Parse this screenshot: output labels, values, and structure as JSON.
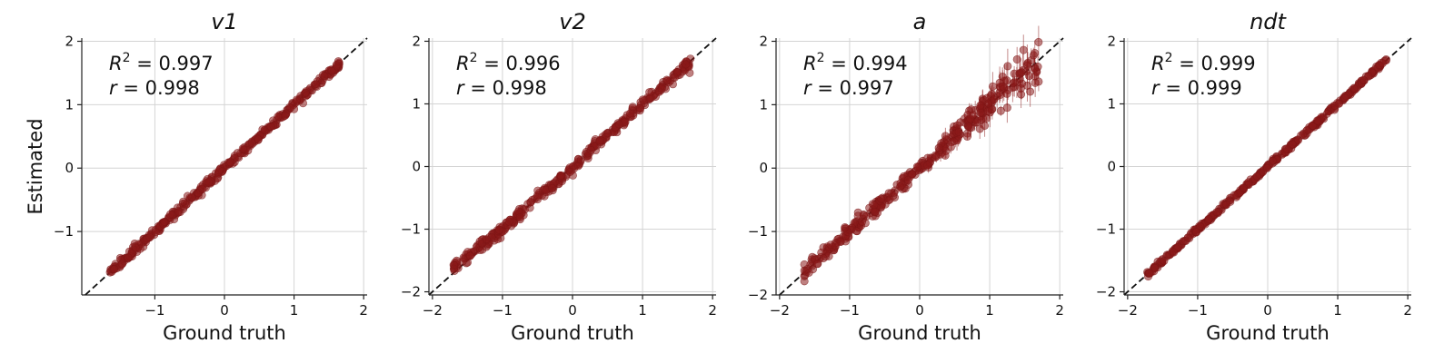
{
  "chart_data": [
    {
      "type": "scatter",
      "title": "v1",
      "xlabel": "Ground truth",
      "ylabel": "Estimated",
      "xlim": [
        -2.05,
        2.05
      ],
      "ylim": [
        -2.0,
        2.05
      ],
      "xticks": [
        -1,
        0,
        1,
        2
      ],
      "yticks": [
        -1,
        0,
        1,
        2
      ],
      "grid": true,
      "reference_line": "identity (dashed)",
      "stats": {
        "r2": "0.997",
        "r": "0.998"
      },
      "series": [
        {
          "x": [
            -1.65,
            -1.3,
            -1.0,
            -0.7,
            -0.4,
            -0.1,
            0.2,
            0.5,
            0.8,
            1.1,
            1.4,
            1.65
          ],
          "y": [
            -1.64,
            -1.3,
            -1.0,
            -0.7,
            -0.4,
            -0.1,
            0.2,
            0.5,
            0.8,
            1.1,
            1.4,
            1.64
          ]
        }
      ],
      "color": "#8b1a1a",
      "spread": 0.03,
      "points": 340
    },
    {
      "type": "scatter",
      "title": "v2",
      "xlabel": "Ground truth",
      "ylabel": "",
      "xlim": [
        -2.05,
        2.05
      ],
      "ylim": [
        -2.05,
        2.05
      ],
      "xticks": [
        -2,
        -1,
        0,
        1,
        2
      ],
      "yticks": [
        -2,
        -1,
        0,
        1,
        2
      ],
      "grid": true,
      "reference_line": "identity (dashed)",
      "stats": {
        "r2": "0.996",
        "r": "0.998"
      },
      "series": [
        {
          "x": [
            -1.7,
            -1.35,
            -1.0,
            -0.7,
            -0.4,
            -0.1,
            0.2,
            0.5,
            0.8,
            1.1,
            1.4,
            1.7
          ],
          "y": [
            -1.62,
            -1.3,
            -1.0,
            -0.7,
            -0.4,
            -0.1,
            0.2,
            0.5,
            0.8,
            1.1,
            1.4,
            1.68
          ]
        }
      ],
      "color": "#8b1a1a",
      "spread": 0.045,
      "points": 340
    },
    {
      "type": "scatter",
      "title": "a",
      "xlabel": "Ground truth",
      "ylabel": "",
      "xlim": [
        -2.05,
        2.05
      ],
      "ylim": [
        -2.0,
        2.05
      ],
      "xticks": [
        -2,
        -1,
        0,
        1,
        2
      ],
      "yticks": [
        -2,
        -1,
        0,
        1,
        2
      ],
      "grid": true,
      "reference_line": "identity (dashed)",
      "stats": {
        "r2": "0.994",
        "r": "0.997"
      },
      "series": [
        {
          "x": [
            -1.65,
            -1.3,
            -1.0,
            -0.7,
            -0.4,
            -0.1,
            0.2,
            0.5,
            0.8,
            1.1,
            1.4,
            1.7
          ],
          "y": [
            -1.64,
            -1.3,
            -1.0,
            -0.7,
            -0.4,
            -0.1,
            0.2,
            0.52,
            0.82,
            1.12,
            1.4,
            1.6
          ]
        }
      ],
      "color": "#8b1a1a",
      "spread": 0.06,
      "error_bars": true,
      "points": 340
    },
    {
      "type": "scatter",
      "title": "ndt",
      "xlabel": "Ground truth",
      "ylabel": "",
      "xlim": [
        -2.05,
        2.05
      ],
      "ylim": [
        -2.05,
        2.05
      ],
      "xticks": [
        -2,
        -1,
        0,
        1,
        2
      ],
      "yticks": [
        -2,
        -1,
        0,
        1,
        2
      ],
      "grid": true,
      "reference_line": "identity (dashed)",
      "stats": {
        "r2": "0.999",
        "r": "0.999"
      },
      "series": [
        {
          "x": [
            -1.72,
            -1.4,
            -1.0,
            -0.7,
            -0.4,
            -0.1,
            0.2,
            0.5,
            0.8,
            1.1,
            1.4,
            1.7
          ],
          "y": [
            -1.72,
            -1.4,
            -1.0,
            -0.7,
            -0.4,
            -0.1,
            0.2,
            0.5,
            0.8,
            1.1,
            1.4,
            1.7
          ]
        }
      ],
      "color": "#8b1a1a",
      "spread": 0.02,
      "points": 340
    }
  ]
}
